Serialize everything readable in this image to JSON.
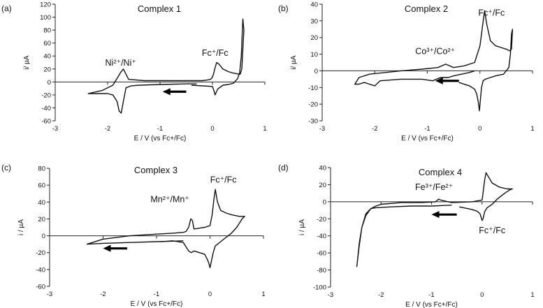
{
  "chart_data": [
    {
      "type": "line",
      "panel_label": "(a)",
      "title": "Complex 1",
      "xlabel": "E / V (vs Fc+/Fc)",
      "ylabel": "i/ µA",
      "xlim": [
        -3,
        1
      ],
      "ylim": [
        -60,
        120
      ],
      "xticks": [
        -3,
        -2,
        -1,
        0,
        1
      ],
      "yticks": [
        -60,
        -40,
        -20,
        0,
        20,
        40,
        60,
        80,
        100,
        120
      ],
      "annotations": [
        {
          "text": "Ni²⁺/Ni⁺",
          "x": -1.75,
          "y": 25
        },
        {
          "text": "Fc⁺/Fc",
          "x": 0.05,
          "y": 40
        }
      ],
      "scan_arrow": {
        "from": -0.5,
        "to": -0.95,
        "y": -15
      },
      "series": [
        {
          "x": [
            -0.4,
            0.0,
            0.03,
            0.05,
            0.1,
            0.2,
            0.3,
            0.4,
            0.48,
            0.52,
            0.55,
            0.57,
            0.58,
            0.6,
            0.56,
            0.53,
            0.5,
            0.45,
            0.38,
            0.3,
            0.2,
            0.12,
            0.08,
            0.05,
            0.02,
            -0.01,
            -0.04,
            -0.1,
            -0.2,
            -0.5,
            -0.9,
            -1.3,
            -1.6,
            -1.65,
            -1.7,
            -1.75,
            -1.8,
            -1.9,
            -2.1,
            -2.37,
            -2.2,
            -2.0,
            -1.9,
            -1.82,
            -1.78,
            -1.74,
            -1.7,
            -1.65,
            -1.55,
            -1.4,
            -1.0,
            -0.5,
            -0.3
          ],
          "y": [
            -5,
            -7,
            -14,
            -20,
            -11,
            -5,
            -4,
            -2,
            5,
            15,
            40,
            80,
            97,
            80,
            20,
            12,
            12,
            13,
            14,
            16,
            20,
            28,
            30,
            22,
            12,
            6,
            4,
            3,
            2,
            2,
            2,
            2,
            4,
            12,
            20,
            15,
            8,
            -5,
            -13,
            -18,
            -18,
            -18,
            -20,
            -30,
            -45,
            -48,
            -30,
            -9,
            -6,
            -5,
            -4,
            -3,
            -3
          ]
        }
      ]
    },
    {
      "type": "line",
      "panel_label": "(b)",
      "title": "Complex 2",
      "xlabel": "E / V (vs Fc+/Fc)",
      "ylabel": "i/ µA",
      "xlim": [
        -3,
        1
      ],
      "ylim": [
        -30,
        40
      ],
      "xticks": [
        -3,
        -2,
        -1,
        0,
        1
      ],
      "yticks": [
        -30,
        -20,
        -10,
        0,
        10,
        20,
        30,
        40
      ],
      "annotations": [
        {
          "text": "Fc⁺/Fc",
          "x": 0.22,
          "y": 33
        },
        {
          "text": "Co³⁺/Co²⁺",
          "x": -0.85,
          "y": 10
        }
      ],
      "scan_arrow": {
        "from": -0.4,
        "to": -0.85,
        "y": -6
      },
      "series": [
        {
          "x": [
            -0.4,
            -0.2,
            -0.1,
            -0.06,
            -0.03,
            -0.01,
            0.01,
            0.03,
            0.06,
            0.1,
            0.2,
            0.3,
            0.45,
            0.55,
            0.58,
            0.6,
            0.62,
            0.6,
            0.57,
            0.5,
            0.4,
            0.3,
            0.2,
            0.13,
            0.09,
            0.05,
            0.0,
            -0.1,
            -0.3,
            -0.5,
            -0.65,
            -0.8,
            -1.1,
            -1.5,
            -1.8,
            -2.1,
            -2.3,
            -2.38,
            -2.3,
            -2.2,
            -2.1,
            -2.0,
            -1.9,
            -1.5,
            -1.1,
            -0.9,
            -0.75,
            -0.6,
            -0.5,
            -0.2,
            -0.1
          ],
          "y": [
            -7,
            -9,
            -11,
            -14,
            -19,
            -24,
            -17,
            -10,
            -6,
            -5,
            -4,
            -3,
            -2,
            2,
            10,
            22,
            25,
            13,
            12,
            13,
            14,
            15,
            18,
            28,
            36,
            27,
            15,
            5,
            3,
            2,
            4,
            2,
            1,
            0,
            -1,
            -2,
            -4,
            -8,
            -8,
            -7,
            -8,
            -9,
            -6,
            -5,
            -5,
            -6,
            -4,
            -4,
            -3,
            -1,
            0
          ]
        }
      ]
    },
    {
      "type": "line",
      "panel_label": "(c)",
      "title": "Complex 3",
      "xlabel": "E / V (vs Fc+/Fc)",
      "ylabel": "i / µA",
      "xlim": [
        -3,
        1
      ],
      "ylim": [
        -60,
        80
      ],
      "xticks": [
        -3,
        -2,
        -1,
        0,
        1
      ],
      "yticks": [
        -60,
        -40,
        -20,
        0,
        20,
        40,
        60,
        80
      ],
      "annotations": [
        {
          "text": "Fc⁺/Fc",
          "x": 0.25,
          "y": 63
        },
        {
          "text": "Mn²⁺/Mn⁺",
          "x": -0.75,
          "y": 40
        }
      ],
      "scan_arrow": {
        "from": -1.55,
        "to": -2.0,
        "y": -15
      },
      "series": [
        {
          "x": [
            -0.9,
            -0.7,
            -0.5,
            -0.4,
            -0.35,
            -0.3,
            -0.2,
            -0.1,
            -0.05,
            -0.02,
            0.0,
            0.02,
            0.06,
            0.1,
            0.2,
            0.3,
            0.4,
            0.5,
            0.6,
            0.65,
            0.55,
            0.4,
            0.3,
            0.2,
            0.14,
            0.1,
            0.07,
            0.04,
            0.0,
            -0.1,
            -0.2,
            -0.3,
            -0.33,
            -0.36,
            -0.4,
            -0.45,
            -0.5,
            -0.7,
            -1.0,
            -1.5,
            -2.0,
            -2.3,
            -2.0,
            -1.5,
            -1.0,
            -0.5
          ],
          "y": [
            -7,
            -6,
            -8,
            -18,
            -20,
            -18,
            -20,
            -22,
            -28,
            -33,
            -38,
            -32,
            -20,
            -12,
            -7,
            -2,
            3,
            10,
            20,
            23,
            23,
            25,
            27,
            30,
            40,
            55,
            42,
            25,
            12,
            10,
            9,
            8,
            18,
            20,
            10,
            5,
            4,
            3,
            2,
            0,
            -4,
            -10,
            -9,
            -8,
            -7,
            -6
          ]
        }
      ]
    },
    {
      "type": "line",
      "panel_label": "(d)",
      "title": "Complex 4",
      "xlabel": "E / V (vs Fc+/Fc)",
      "ylabel": "i / µA",
      "xlim": [
        -3,
        1
      ],
      "ylim": [
        -100,
        40
      ],
      "xticks": [
        -3,
        -2,
        -1,
        0,
        1
      ],
      "yticks": [
        -100,
        -80,
        -60,
        -40,
        -20,
        0,
        20,
        40
      ],
      "annotations": [
        {
          "text": "Fe³⁺/Fe²⁺",
          "x": -0.95,
          "y": 14
        },
        {
          "text": "Fc⁺/Fc",
          "x": 0.2,
          "y": -37
        }
      ],
      "scan_arrow": {
        "from": -0.5,
        "to": -1.0,
        "y": -15
      },
      "series": [
        {
          "x": [
            -0.45,
            -0.2,
            -0.1,
            -0.04,
            0.0,
            0.02,
            0.05,
            0.1,
            0.2,
            0.3,
            0.45,
            0.55,
            0.6,
            0.5,
            0.35,
            0.2,
            0.12,
            0.08,
            0.05,
            0.02,
            0.0,
            -0.2,
            -0.6,
            -0.82,
            -0.86,
            -0.92,
            -1.2,
            -1.6,
            -2.0,
            -2.1,
            -2.2,
            -2.3,
            -2.38,
            -2.43,
            -2.46,
            -2.48,
            -2.44,
            -2.38,
            -2.3,
            -2.2,
            -2.1,
            -1.8,
            -1.4,
            -1.0,
            -0.6
          ],
          "y": [
            -6,
            -9,
            -11,
            -14,
            -22,
            -20,
            -12,
            -7,
            -3,
            3,
            10,
            14,
            15,
            15,
            17,
            22,
            30,
            34,
            25,
            10,
            2,
            0,
            -1,
            2,
            3,
            0,
            -1,
            -1,
            -3,
            -5,
            -8,
            -16,
            -30,
            -48,
            -65,
            -76,
            -55,
            -30,
            -14,
            -8,
            -7,
            -6,
            -5,
            -5,
            -4
          ]
        }
      ]
    }
  ]
}
